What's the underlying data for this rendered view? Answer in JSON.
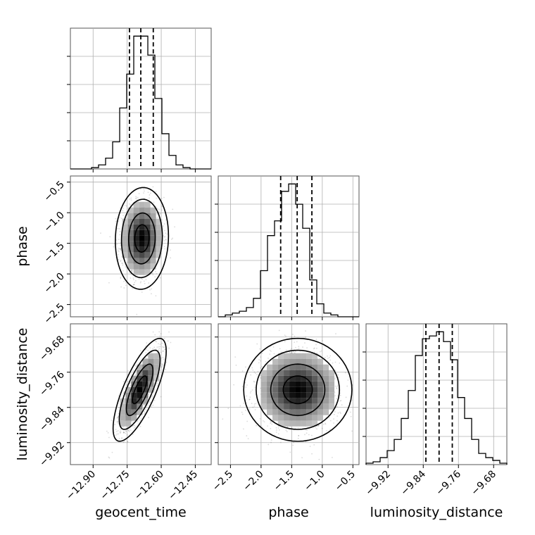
{
  "chart_data": {
    "type": "corner",
    "parameters": [
      {
        "name": "geocent_time",
        "label": "geocent_time",
        "range": [
          -13.0,
          -12.38
        ],
        "ticks": [
          -12.9,
          -12.75,
          -12.6,
          -12.45
        ],
        "tick_labels": [
          "−12.90",
          "−12.75",
          "−12.60",
          "−12.45"
        ],
        "quantiles": [
          -12.74,
          -12.69,
          -12.635
        ]
      },
      {
        "name": "phase",
        "label": "phase",
        "range": [
          -2.7,
          -0.4
        ],
        "ticks": [
          -2.5,
          -2.0,
          -1.5,
          -1.0,
          -0.5
        ],
        "tick_labels": [
          "−2.5",
          "−2.0",
          "−1.5",
          "−1.0",
          "−0.5"
        ],
        "quantiles": [
          -1.68,
          -1.41,
          -1.17
        ]
      },
      {
        "name": "luminosity_distance",
        "label": "luminosity_distance",
        "range": [
          -9.97,
          -9.65
        ],
        "ticks": [
          -9.92,
          -9.84,
          -9.76,
          -9.68
        ],
        "tick_labels": [
          "−9.92",
          "−9.84",
          "−9.76",
          "−9.68"
        ],
        "quantiles": [
          -9.834,
          -9.804,
          -9.774
        ]
      }
    ],
    "histograms": [
      {
        "param": "geocent_time",
        "bin_edges_range": [
          -13.0,
          -12.38
        ],
        "bins": 20,
        "counts": [
          0,
          0,
          0,
          1,
          3,
          8,
          20,
          45,
          70,
          98,
          98,
          84,
          52,
          26,
          10,
          3,
          1,
          0,
          0,
          0
        ]
      },
      {
        "param": "phase",
        "bin_edges_range": [
          -2.7,
          -0.4
        ],
        "bins": 20,
        "counts": [
          0,
          1,
          2,
          3,
          5,
          10,
          25,
          44,
          52,
          68,
          72,
          61,
          48,
          20,
          7,
          2,
          1,
          0,
          0,
          0
        ]
      },
      {
        "param": "luminosity_distance",
        "bin_edges_range": [
          -9.97,
          -9.65
        ],
        "bins": 20,
        "counts": [
          1,
          2,
          5,
          10,
          18,
          33,
          53,
          78,
          90,
          92,
          95,
          88,
          75,
          48,
          33,
          18,
          8,
          5,
          3,
          1
        ]
      }
    ],
    "pairs": [
      {
        "x": "geocent_time",
        "y": "phase",
        "center": [
          -12.685,
          -1.42
        ],
        "spread": [
          0.045,
          0.32
        ],
        "correlation": 0.05
      },
      {
        "x": "geocent_time",
        "y": "luminosity_distance",
        "center": [
          -12.695,
          -9.8
        ],
        "spread": [
          0.045,
          0.045
        ],
        "correlation": 0.75
      },
      {
        "x": "phase",
        "y": "luminosity_distance",
        "center": [
          -1.4,
          -9.8
        ],
        "spread": [
          0.34,
          0.045
        ],
        "correlation": 0.0
      }
    ],
    "grid": true,
    "title": ""
  }
}
